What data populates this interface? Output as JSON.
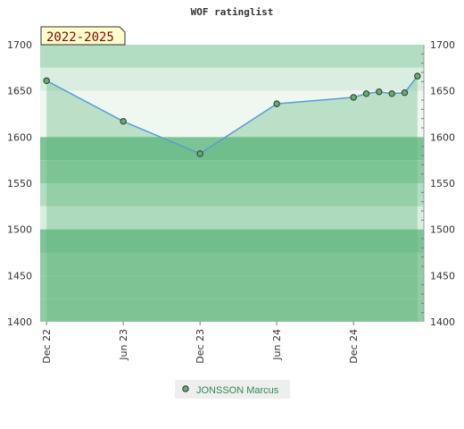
{
  "chart_data": {
    "type": "line",
    "title": "WOF ratinglist",
    "range_label": "2022-2025",
    "ylim": [
      1400,
      1700
    ],
    "y_ticks": [
      1400,
      1450,
      1500,
      1550,
      1600,
      1650,
      1700
    ],
    "x_ticks": [
      "Dec 22",
      "Jun 23",
      "Dec 23",
      "Jun 24",
      "Dec 24"
    ],
    "x_tick_positions": [
      0,
      6,
      12,
      18,
      24
    ],
    "xlim": [
      -0.5,
      29.5
    ],
    "series": [
      {
        "name": "JONSSON Marcus",
        "x": [
          0,
          6,
          12,
          18,
          24,
          25,
          26,
          27,
          28,
          29
        ],
        "values": [
          1661,
          1617,
          1582,
          1636,
          1643,
          1647,
          1649,
          1647,
          1648,
          1666
        ]
      }
    ],
    "grid": true,
    "legend_position": "bottom-center",
    "colors": {
      "line": "#5b9bd5",
      "marker_fill": "#5fb06f",
      "marker_stroke": "#333333",
      "band_dark": "#7cc495",
      "band_mid": "#8fcca3",
      "band_light": "#b3ddc2",
      "band_pale": "#d9eee0",
      "band_white": "#eef8f1",
      "legend_bg": "#eeeeee",
      "range_bg": "#ffffcc"
    }
  }
}
